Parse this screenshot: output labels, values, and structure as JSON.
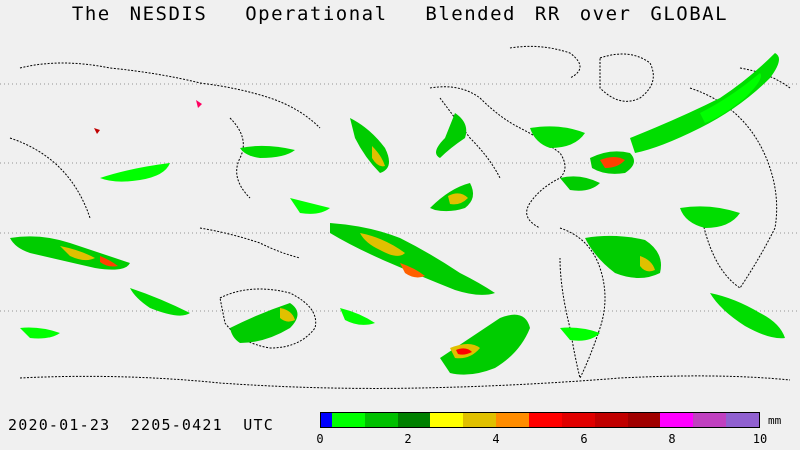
{
  "title": "The NESDIS  Operational  Blended RR over GLOBAL",
  "timestamp": "2020-01-23  2205-0421  UTC",
  "legend": {
    "unit": "mm",
    "ticks": [
      {
        "label": "0",
        "value": 0
      },
      {
        "label": "2",
        "value": 2
      },
      {
        "label": "4",
        "value": 4
      },
      {
        "label": "6",
        "value": 6
      },
      {
        "label": "8",
        "value": 8
      },
      {
        "label": "10",
        "value": 10
      }
    ],
    "colors": [
      {
        "from": 0.0,
        "to": 0.25,
        "color": "#0000ff"
      },
      {
        "from": 0.25,
        "to": 1.0,
        "color": "#00ff00"
      },
      {
        "from": 1.0,
        "to": 1.75,
        "color": "#00c000"
      },
      {
        "from": 1.75,
        "to": 2.5,
        "color": "#008000"
      },
      {
        "from": 2.5,
        "to": 3.25,
        "color": "#ffff00"
      },
      {
        "from": 3.25,
        "to": 4.0,
        "color": "#e0c000"
      },
      {
        "from": 4.0,
        "to": 4.75,
        "color": "#ff8c00"
      },
      {
        "from": 4.75,
        "to": 5.5,
        "color": "#ff0000"
      },
      {
        "from": 5.5,
        "to": 6.25,
        "color": "#e00000"
      },
      {
        "from": 6.25,
        "to": 7.0,
        "color": "#c00000"
      },
      {
        "from": 7.0,
        "to": 7.75,
        "color": "#a00000"
      },
      {
        "from": 7.75,
        "to": 8.5,
        "color": "#ff00ff"
      },
      {
        "from": 8.5,
        "to": 9.25,
        "color": "#c040c0"
      },
      {
        "from": 9.25,
        "to": 10.0,
        "color": "#9060d0"
      }
    ]
  },
  "map": {
    "projection": "cylindrical",
    "background_color": "#f0f0f0",
    "graticule_style": "dotted",
    "coastline_color": "#000000"
  }
}
